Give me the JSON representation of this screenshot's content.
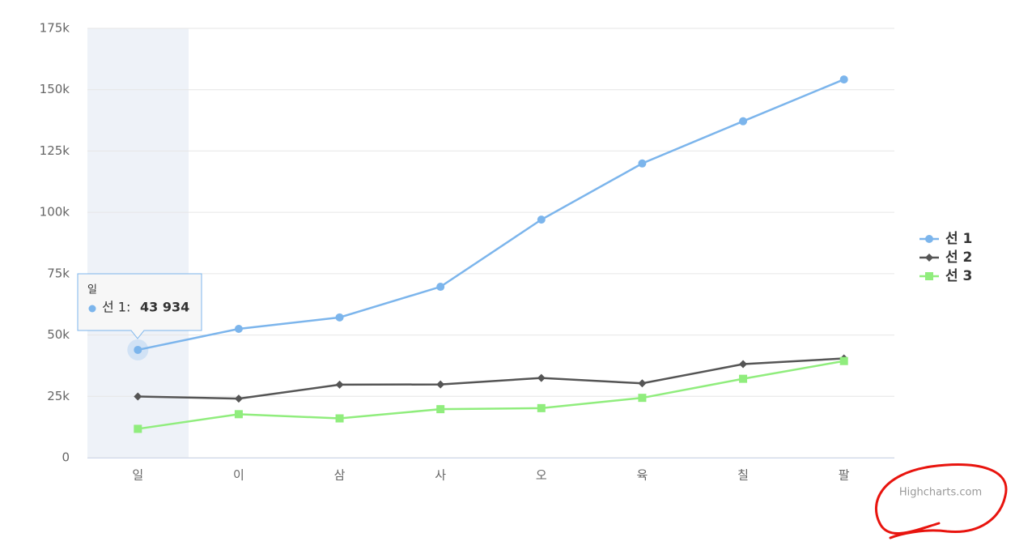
{
  "chart_data": {
    "type": "line",
    "categories": [
      "일",
      "이",
      "삼",
      "사",
      "오",
      "육",
      "칠",
      "팔"
    ],
    "series": [
      {
        "name": "선 1",
        "color": "#7cb5ec",
        "marker": "circle",
        "values": [
          43934,
          52503,
          57177,
          69658,
          97031,
          119931,
          137133,
          154175
        ]
      },
      {
        "name": "선 2",
        "color": "#555555",
        "marker": "diamond",
        "values": [
          24916,
          24064,
          29742,
          29851,
          32490,
          30282,
          38121,
          40434
        ]
      },
      {
        "name": "선 3",
        "color": "#90ed7d",
        "marker": "square",
        "values": [
          11744,
          17722,
          16005,
          19771,
          20185,
          24377,
          32147,
          39387
        ]
      }
    ],
    "ylim": [
      0,
      175000
    ],
    "yticks": [
      0,
      {
        "value": 25000,
        "label": "25k"
      },
      {
        "value": 50000,
        "label": "50k"
      },
      {
        "value": 75000,
        "label": "75k"
      },
      {
        "value": 100000,
        "label": "100k"
      },
      {
        "value": 125000,
        "label": "125k"
      },
      {
        "value": 150000,
        "label": "150k"
      },
      {
        "value": 175000,
        "label": "175k"
      }
    ],
    "grid": true,
    "legend": "right",
    "tooltip": {
      "header": "일",
      "series": "선 1:",
      "value_label": "43 934"
    },
    "credits": "Highcharts.com"
  }
}
